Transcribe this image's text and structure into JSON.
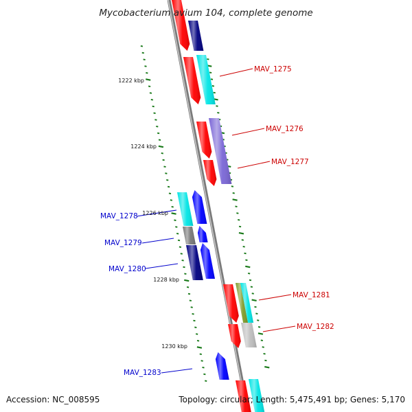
{
  "title": "Mycobacterium avium 104, complete genome",
  "accession_text": "Accession: NC_008595",
  "topology_text": "Topology: circular; Length: 5,475,491 bp; Genes: 5,170",
  "scale": {
    "unit": "kbp",
    "tick_start": 1221,
    "tick_end": 1231,
    "minor_step": 0.2
  },
  "scale_labels": [
    {
      "kb": 1222,
      "label": "1222 kbp"
    },
    {
      "kb": 1224,
      "label": "1224 kbp"
    },
    {
      "kb": 1226,
      "label": "1226 kbp"
    },
    {
      "kb": 1228,
      "label": "1228 kbp"
    },
    {
      "kb": 1230,
      "label": "1230 kbp"
    }
  ],
  "colors": {
    "forward_label": "#cc0000",
    "reverse_label": "#0000cc",
    "backbone": "#888888",
    "ticks": "#1a7a1a",
    "red": "#ff0000",
    "cyan": "#00e5e5",
    "navy": "#000080",
    "blue": "#0000ff",
    "purple": "#7a66d6",
    "gray": "#777777",
    "olive": "#7f9b2a",
    "silver": "#bdbdbd"
  },
  "gene_labels": [
    {
      "name": "MAV_1275",
      "strand": "forward"
    },
    {
      "name": "MAV_1276",
      "strand": "forward"
    },
    {
      "name": "MAV_1277",
      "strand": "forward"
    },
    {
      "name": "MAV_1278",
      "strand": "reverse"
    },
    {
      "name": "MAV_1279",
      "strand": "reverse"
    },
    {
      "name": "MAV_1280",
      "strand": "reverse"
    },
    {
      "name": "MAV_1281",
      "strand": "forward"
    },
    {
      "name": "MAV_1282",
      "strand": "forward"
    },
    {
      "name": "MAV_1283",
      "strand": "reverse"
    }
  ]
}
